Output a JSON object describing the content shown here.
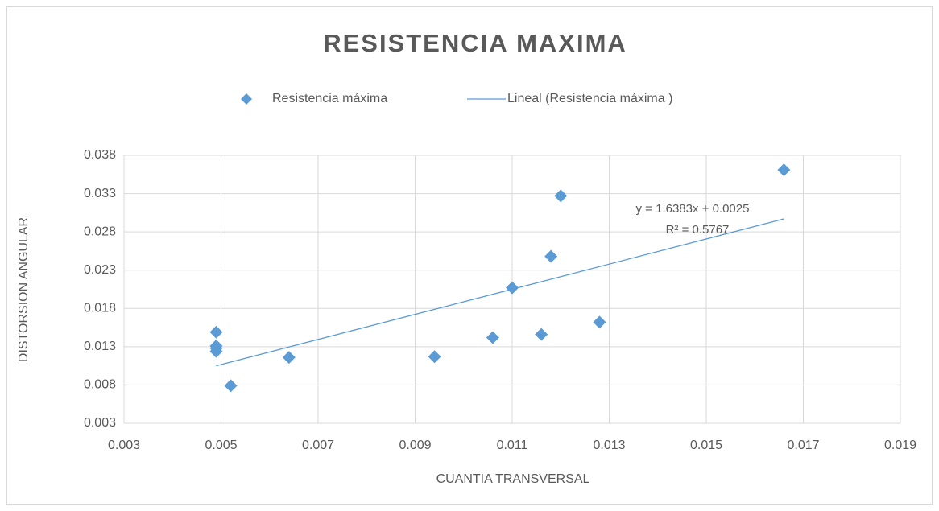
{
  "chart_data": {
    "type": "scatter",
    "title": "RESISTENCIA MAXIMA",
    "x_label": "CUANTIA TRANSVERSAL",
    "y_label": "DISTORSION ANGULAR",
    "xlim": [
      0.003,
      0.019
    ],
    "xticks": [
      0.003,
      0.005,
      0.007,
      0.009,
      0.011,
      0.013,
      0.015,
      0.017,
      0.019
    ],
    "ylim": [
      0.003,
      0.038
    ],
    "yticks": [
      0.003,
      0.008,
      0.013,
      0.018,
      0.023,
      0.028,
      0.033,
      0.038
    ],
    "grid": true,
    "legend": "top",
    "series": [
      {
        "name": "Resistencia máxima",
        "color": "#5b9bd5",
        "x": [
          0.0049,
          0.0049,
          0.0049,
          0.0049,
          0.0052,
          0.0064,
          0.0094,
          0.0106,
          0.0116,
          0.011,
          0.0118,
          0.012,
          0.0128,
          0.0166
        ],
        "values": [
          0.0149,
          0.0131,
          0.0128,
          0.0124,
          0.0079,
          0.0116,
          0.0117,
          0.0142,
          0.0146,
          0.0207,
          0.0248,
          0.0327,
          0.0162,
          0.0361
        ]
      }
    ],
    "trendline": {
      "name": "Lineal (Resistencia máxima )",
      "color": "#5b9bd5",
      "x": [
        0.0049,
        0.0166
      ],
      "values": [
        0.0105,
        0.0297
      ],
      "equation": "y = 1.6383x + 0.0025",
      "r_squared": "R² = 0.5767"
    }
  }
}
